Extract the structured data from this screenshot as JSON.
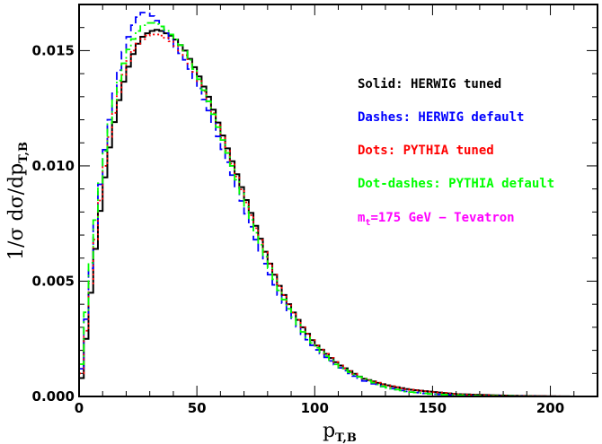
{
  "chart_data": {
    "type": "line",
    "title": "",
    "xlabel": "p_{T,B}",
    "xlabel_main": "p",
    "xlabel_sub": "T,B",
    "ylabel": "1/σ dσ/dp_{T,B}",
    "ylabel_main": "1/σ dσ/dp",
    "ylabel_sub": "T,B",
    "xlim": [
      0,
      220
    ],
    "ylim": [
      0,
      0.017
    ],
    "xticks": [
      0,
      50,
      100,
      150,
      200
    ],
    "xtick_labels": [
      "0",
      "50",
      "100",
      "150",
      "200"
    ],
    "yticks": [
      0,
      0.005,
      0.01,
      0.015
    ],
    "ytick_labels": [
      "0.000",
      "0.005",
      "0.010",
      "0.015"
    ],
    "grid": false,
    "legend_position": "top-right",
    "annotation": {
      "main": "m",
      "sub": "t",
      "rest": "=175 GeV − Tevatron",
      "color": "#ff00ff"
    },
    "x_key": [
      0,
      2,
      4,
      6,
      8,
      10,
      12,
      14,
      16,
      18,
      20,
      22,
      24,
      26,
      28,
      30,
      32,
      34,
      36,
      38,
      40,
      45,
      50,
      55,
      60,
      65,
      70,
      75,
      80,
      85,
      90,
      95,
      100,
      110,
      120,
      130,
      140,
      150,
      160,
      170,
      180,
      190,
      200,
      210,
      220
    ],
    "series": [
      {
        "name": "Solid: HERWIG tuned",
        "color": "#000000",
        "dash": "none",
        "values": [
          0.0001,
          0.0015,
          0.0035,
          0.0055,
          0.0073,
          0.0088,
          0.0102,
          0.0114,
          0.0124,
          0.0133,
          0.014,
          0.0146,
          0.0151,
          0.0155,
          0.0157,
          0.0158,
          0.0159,
          0.0159,
          0.0158,
          0.0157,
          0.0156,
          0.015,
          0.0141,
          0.013,
          0.0116,
          0.0102,
          0.0088,
          0.0074,
          0.006,
          0.0048,
          0.0038,
          0.003,
          0.0023,
          0.0014,
          0.0008,
          0.0005,
          0.0003,
          0.0002,
          0.0001,
          7e-05,
          4e-05,
          2e-05,
          1e-05,
          0.0,
          0.0
        ]
      },
      {
        "name": "Dashes: HERWIG default",
        "color": "#0000ff",
        "dash": "9,5",
        "values": [
          0.0002,
          0.0022,
          0.0045,
          0.0066,
          0.0084,
          0.01,
          0.0114,
          0.0126,
          0.0137,
          0.0146,
          0.0153,
          0.0159,
          0.0163,
          0.0166,
          0.0167,
          0.0166,
          0.0164,
          0.0162,
          0.0159,
          0.0156,
          0.0153,
          0.0146,
          0.0136,
          0.0124,
          0.011,
          0.0096,
          0.0082,
          0.0068,
          0.0055,
          0.0044,
          0.0035,
          0.0027,
          0.0021,
          0.0013,
          0.0007,
          0.0004,
          0.0002,
          0.0001,
          6e-05,
          3e-05,
          2e-05,
          1e-05,
          0.0,
          0.0,
          0.0
        ]
      },
      {
        "name": "Dots: PYTHIA tuned",
        "color": "#ff0000",
        "dash": "2,3",
        "values": [
          0.0002,
          0.0018,
          0.0039,
          0.0059,
          0.0077,
          0.0093,
          0.0107,
          0.0118,
          0.0128,
          0.0136,
          0.0143,
          0.0148,
          0.0152,
          0.0154,
          0.0156,
          0.0157,
          0.0157,
          0.0157,
          0.0156,
          0.0155,
          0.0153,
          0.0148,
          0.0139,
          0.0128,
          0.0115,
          0.0101,
          0.0087,
          0.0073,
          0.006,
          0.0048,
          0.0038,
          0.003,
          0.0023,
          0.0014,
          0.0008,
          0.0005,
          0.0003,
          0.0002,
          0.0001,
          6e-05,
          3e-05,
          2e-05,
          1e-05,
          0.0,
          0.0
        ]
      },
      {
        "name": "Dot-dashes: PYTHIA default",
        "color": "#00ff00",
        "dash": "9,4,2,4",
        "values": [
          0.0003,
          0.0025,
          0.0048,
          0.0068,
          0.0085,
          0.01,
          0.0113,
          0.0124,
          0.0133,
          0.0141,
          0.0148,
          0.0153,
          0.0157,
          0.016,
          0.0162,
          0.0162,
          0.0162,
          0.0161,
          0.016,
          0.0158,
          0.0156,
          0.015,
          0.014,
          0.0128,
          0.0114,
          0.01,
          0.0085,
          0.0071,
          0.0058,
          0.0046,
          0.0036,
          0.0028,
          0.0022,
          0.0013,
          0.0008,
          0.0004,
          0.0002,
          0.0001,
          6e-05,
          3e-05,
          2e-05,
          1e-05,
          0.0,
          0.0,
          0.0
        ]
      }
    ]
  }
}
